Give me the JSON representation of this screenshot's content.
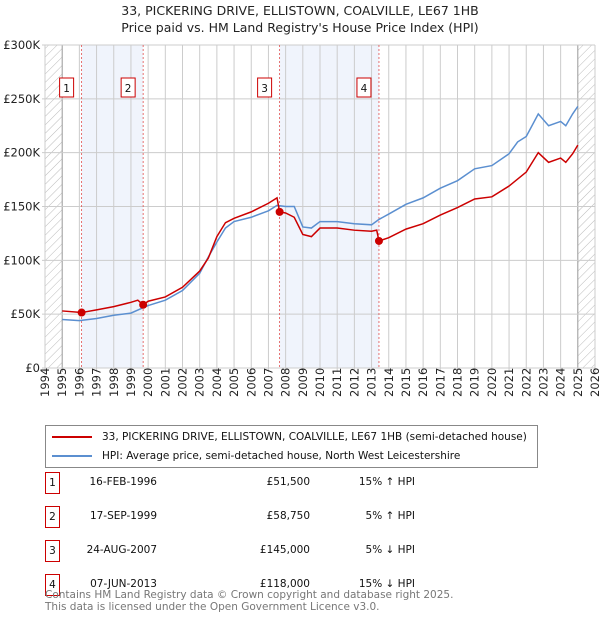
{
  "chart_data": {
    "type": "line",
    "title": "33, PICKERING DRIVE, ELLISTOWN, COALVILLE, LE67 1HB",
    "subtitle": "Price paid vs. HM Land Registry's House Price Index (HPI)",
    "xlim": [
      1994,
      2026
    ],
    "ylim": [
      0,
      300000
    ],
    "x_ticks": [
      "1994",
      "1995",
      "1996",
      "1997",
      "1998",
      "1999",
      "2000",
      "2001",
      "2002",
      "2003",
      "2004",
      "2005",
      "2006",
      "2007",
      "2008",
      "2009",
      "2010",
      "2011",
      "2012",
      "2013",
      "2014",
      "2015",
      "2016",
      "2017",
      "2018",
      "2019",
      "2020",
      "2021",
      "2022",
      "2023",
      "2024",
      "2025",
      "2026"
    ],
    "y_ticks": [
      {
        "v": 0,
        "label": "£0"
      },
      {
        "v": 50000,
        "label": "£50K"
      },
      {
        "v": 100000,
        "label": "£100K"
      },
      {
        "v": 150000,
        "label": "£150K"
      },
      {
        "v": 200000,
        "label": "£200K"
      },
      {
        "v": 250000,
        "label": "£250K"
      },
      {
        "v": 300000,
        "label": "£300K"
      }
    ],
    "grid": true,
    "shaded_ranges": [
      [
        1996.13,
        1999.71
      ],
      [
        2007.65,
        2013.43
      ]
    ],
    "hatched_ranges": [
      [
        1994,
        1995
      ],
      [
        2025,
        2026
      ]
    ],
    "series": [
      {
        "name": "33, PICKERING DRIVE, ELLISTOWN, COALVILLE, LE67 1HB (semi-detached house)",
        "color": "#cc0000",
        "x": [
          1995,
          1996.13,
          1997,
          1998,
          1999,
          1999.4,
          1999.71,
          2000,
          2001,
          2002,
          2003,
          2003.5,
          2004,
          2004.5,
          2005,
          2006,
          2007,
          2007.5,
          2007.65,
          2008,
          2008.5,
          2009,
          2009.5,
          2010,
          2011,
          2012,
          2013,
          2013.3,
          2013.43,
          2014,
          2015,
          2016,
          2017,
          2018,
          2019,
          2020,
          2021,
          2022,
          2022.7,
          2023.3,
          2024,
          2024.3,
          2024.7,
          2025
        ],
        "y": [
          53000,
          51500,
          54000,
          57000,
          61000,
          63000,
          58750,
          62000,
          66000,
          75000,
          90000,
          102000,
          122000,
          135000,
          139000,
          145000,
          153000,
          158000,
          145000,
          144000,
          140000,
          124000,
          122000,
          130000,
          130000,
          128000,
          127000,
          128000,
          118000,
          121000,
          129000,
          134000,
          142000,
          149000,
          157000,
          159000,
          169000,
          182000,
          200000,
          191000,
          195000,
          191000,
          199000,
          207000
        ]
      },
      {
        "name": "HPI: Average price, semi-detached house, North West Leicestershire",
        "color": "#5b8fd0",
        "x": [
          1995,
          1996,
          1997,
          1998,
          1999,
          1999.71,
          2000,
          2001,
          2002,
          2003,
          2003.5,
          2004,
          2004.5,
          2005,
          2006,
          2007,
          2007.5,
          2008,
          2008.5,
          2009,
          2009.5,
          2010,
          2011,
          2012,
          2013,
          2013.43,
          2014,
          2015,
          2016,
          2017,
          2018,
          2019,
          2020,
          2021,
          2021.5,
          2022,
          2022.7,
          2023.3,
          2024,
          2024.3,
          2024.7,
          2025
        ],
        "y": [
          45000,
          44000,
          46000,
          49000,
          51000,
          56000,
          58000,
          63000,
          72000,
          88000,
          103000,
          117000,
          130000,
          136000,
          140000,
          146000,
          151000,
          150000,
          150000,
          131000,
          130000,
          136000,
          136000,
          134000,
          133000,
          138000,
          143000,
          152000,
          158000,
          167000,
          174000,
          185000,
          188000,
          199000,
          210000,
          215000,
          236000,
          225000,
          229000,
          225000,
          236000,
          243000
        ]
      }
    ],
    "sales": [
      {
        "n": "1",
        "x": 1996.13,
        "price": 51500,
        "date": "16-FEB-1996",
        "price_label": "£51,500",
        "hpi": "15% ↑ HPI"
      },
      {
        "n": "2",
        "x": 1999.71,
        "price": 58750,
        "date": "17-SEP-1999",
        "price_label": "£58,750",
        "hpi": "5% ↑ HPI"
      },
      {
        "n": "3",
        "x": 2007.65,
        "price": 145000,
        "date": "24-AUG-2007",
        "price_label": "£145,000",
        "hpi": "5% ↓ HPI"
      },
      {
        "n": "4",
        "x": 2013.43,
        "price": 118000,
        "date": "07-JUN-2013",
        "price_label": "£118,000",
        "hpi": "15% ↓ HPI"
      }
    ]
  },
  "footer": {
    "line1": "Contains HM Land Registry data © Crown copyright and database right 2025.",
    "line2": "This data is licensed under the Open Government Licence v3.0."
  }
}
